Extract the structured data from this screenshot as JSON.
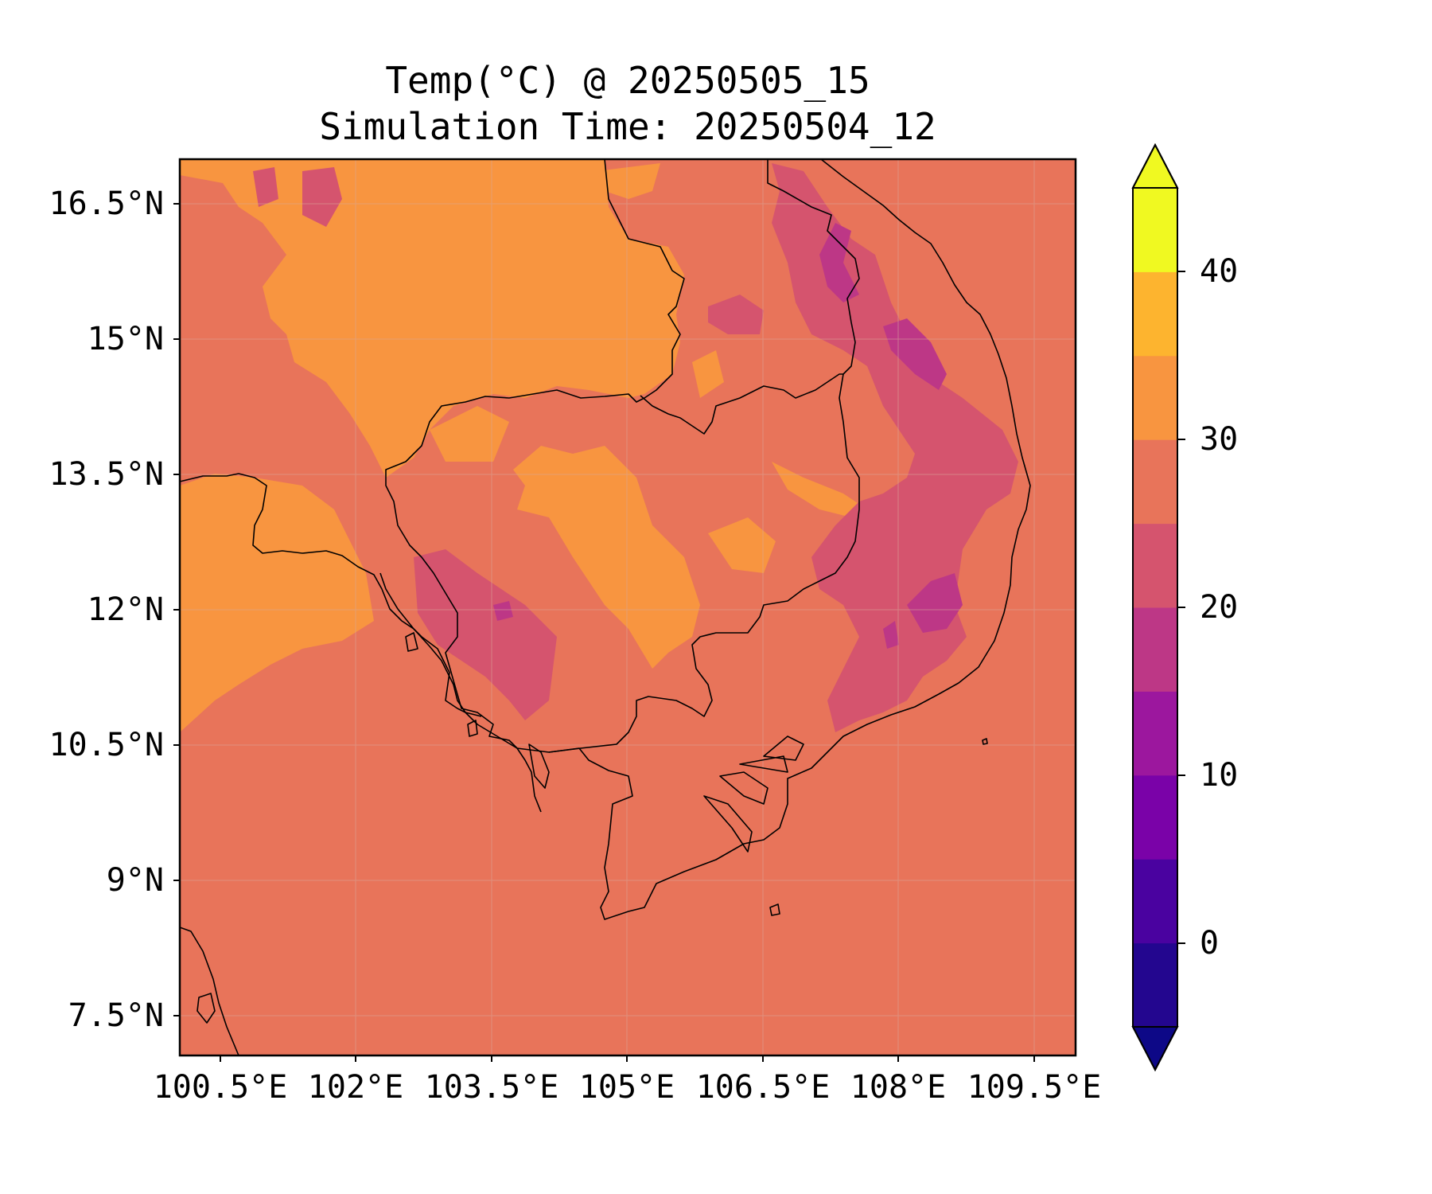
{
  "title": "Temp(°C) @ 20250505_15",
  "subtitle": "Simulation Time: 20250504_12",
  "map": {
    "lat_ticks": [
      "16.5°N",
      "15°N",
      "13.5°N",
      "12°N",
      "10.5°N",
      "9°N",
      "7.5°N"
    ],
    "lon_ticks": [
      "100.5°E",
      "102°E",
      "103.5°E",
      "105°E",
      "106.5°E",
      "108°E",
      "109.5°E"
    ],
    "background_color": "#e8745a"
  },
  "colorbar": {
    "label_0": "0",
    "label_10": "10",
    "label_20": "20",
    "label_30": "30",
    "label_40": "40",
    "levels_low_to_high": [
      "-5",
      "0",
      "5",
      "10",
      "15",
      "20",
      "25",
      "30",
      "35",
      "40",
      "45"
    ],
    "colors_low_to_high": [
      "#23068f",
      "#4a02a0",
      "#7a02a8",
      "#9c179e",
      "#bd3786",
      "#d5546e",
      "#e8745a",
      "#f89540",
      "#fdb42f",
      "#f0f921"
    ],
    "under_color": "#0d0887",
    "over_color": "#f0f921",
    "extend": "both"
  }
}
